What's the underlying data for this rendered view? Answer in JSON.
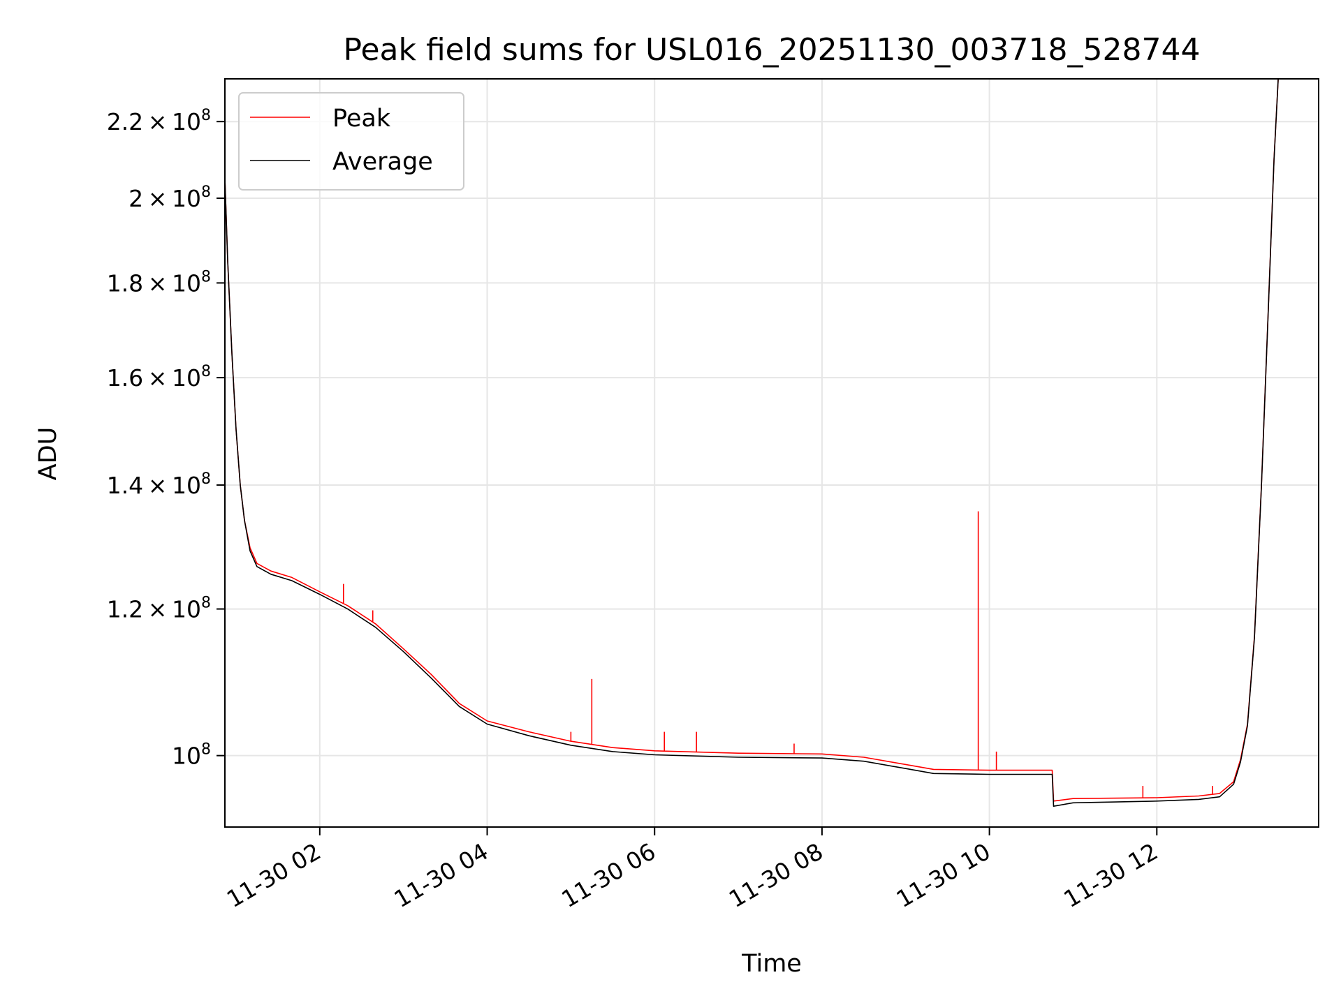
{
  "chart_data": {
    "type": "line",
    "title": "Peak field sums for USL016_20251130_003718_528744",
    "xlabel": "Time",
    "ylabel": "ADU",
    "y_scale": "log",
    "xlim": [
      "2025-11-30 00:52",
      "2025-11-30 13:56"
    ],
    "ylim": [
      91500000,
      232000000
    ],
    "grid": true,
    "legend_position": "top-left",
    "x_ticks": [
      {
        "value": "2025-11-30 02:00",
        "label": "11-30 02"
      },
      {
        "value": "2025-11-30 04:00",
        "label": "11-30 04"
      },
      {
        "value": "2025-11-30 06:00",
        "label": "11-30 06"
      },
      {
        "value": "2025-11-30 08:00",
        "label": "11-30 08"
      },
      {
        "value": "2025-11-30 10:00",
        "label": "11-30 10"
      },
      {
        "value": "2025-11-30 12:00",
        "label": "11-30 12"
      }
    ],
    "y_ticks": [
      {
        "value": 100000000,
        "mantissa": "",
        "exponent": "8"
      },
      {
        "value": 120000000,
        "mantissa": "1.2",
        "exponent": "8"
      },
      {
        "value": 140000000,
        "mantissa": "1.4",
        "exponent": "8"
      },
      {
        "value": 160000000,
        "mantissa": "1.6",
        "exponent": "8"
      },
      {
        "value": 180000000,
        "mantissa": "1.8",
        "exponent": "8"
      },
      {
        "value": 200000000,
        "mantissa": "2",
        "exponent": "8"
      },
      {
        "value": 220000000,
        "mantissa": "2.2",
        "exponent": "8"
      }
    ],
    "series": [
      {
        "name": "Peak",
        "color": "#ff0000",
        "points": [
          [
            "2025-11-30 00:52",
            205000000
          ],
          [
            "2025-11-30 00:54",
            185000000
          ],
          [
            "2025-11-30 00:57",
            165000000
          ],
          [
            "2025-11-30 01:00",
            150000000
          ],
          [
            "2025-11-30 01:03",
            140000000
          ],
          [
            "2025-11-30 01:06",
            134000000
          ],
          [
            "2025-11-30 01:10",
            129500000
          ],
          [
            "2025-11-30 01:15",
            127000000
          ],
          [
            "2025-11-30 01:25",
            125800000
          ],
          [
            "2025-11-30 01:40",
            124800000
          ],
          [
            "2025-11-30 02:00",
            122600000
          ],
          [
            "2025-11-30 02:20",
            120500000
          ],
          [
            "2025-11-30 02:40",
            117800000
          ],
          [
            "2025-11-30 03:00",
            114200000
          ],
          [
            "2025-11-30 03:20",
            110600000
          ],
          [
            "2025-11-30 03:40",
            106700000
          ],
          [
            "2025-11-30 04:00",
            104400000
          ],
          [
            "2025-11-30 04:30",
            103000000
          ],
          [
            "2025-11-30 05:00",
            101800000
          ],
          [
            "2025-11-30 05:30",
            101000000
          ],
          [
            "2025-11-30 06:00",
            100600000
          ],
          [
            "2025-11-30 07:00",
            100300000
          ],
          [
            "2025-11-30 08:00",
            100200000
          ],
          [
            "2025-11-30 08:30",
            99800000
          ],
          [
            "2025-11-30 09:00",
            98900000
          ],
          [
            "2025-11-30 09:20",
            98300000
          ],
          [
            "2025-11-30 10:00",
            98200000
          ],
          [
            "2025-11-30 10:45",
            98200000
          ],
          [
            "2025-11-30 10:46",
            94500000
          ],
          [
            "2025-11-30 11:00",
            94800000
          ],
          [
            "2025-11-30 12:00",
            94900000
          ],
          [
            "2025-11-30 12:30",
            95100000
          ],
          [
            "2025-11-30 12:45",
            95400000
          ],
          [
            "2025-11-30 12:55",
            96800000
          ],
          [
            "2025-11-30 13:00",
            99500000
          ],
          [
            "2025-11-30 13:05",
            104000000
          ],
          [
            "2025-11-30 13:10",
            116000000
          ],
          [
            "2025-11-30 13:15",
            140000000
          ],
          [
            "2025-11-30 13:20",
            175000000
          ],
          [
            "2025-11-30 13:24",
            210000000
          ],
          [
            "2025-11-30 13:27",
            232000000
          ]
        ],
        "spikes": [
          [
            "2025-11-30 02:17",
            123800000
          ],
          [
            "2025-11-30 02:38",
            119800000
          ],
          [
            "2025-11-30 05:00",
            103000000
          ],
          [
            "2025-11-30 05:15",
            110000000
          ],
          [
            "2025-11-30 06:07",
            103000000
          ],
          [
            "2025-11-30 06:30",
            103000000
          ],
          [
            "2025-11-30 07:40",
            101500000
          ],
          [
            "2025-11-30 09:52",
            135500000
          ],
          [
            "2025-11-30 10:05",
            100500000
          ],
          [
            "2025-11-30 11:50",
            96300000
          ],
          [
            "2025-11-30 12:40",
            96300000
          ]
        ]
      },
      {
        "name": "Average",
        "color": "#000000",
        "points": [
          [
            "2025-11-30 00:52",
            205000000
          ],
          [
            "2025-11-30 00:54",
            185000000
          ],
          [
            "2025-11-30 00:57",
            165000000
          ],
          [
            "2025-11-30 01:00",
            150000000
          ],
          [
            "2025-11-30 01:03",
            140000000
          ],
          [
            "2025-11-30 01:06",
            134000000
          ],
          [
            "2025-11-30 01:10",
            129000000
          ],
          [
            "2025-11-30 01:15",
            126500000
          ],
          [
            "2025-11-30 01:25",
            125300000
          ],
          [
            "2025-11-30 01:40",
            124300000
          ],
          [
            "2025-11-30 02:00",
            122200000
          ],
          [
            "2025-11-30 02:20",
            120000000
          ],
          [
            "2025-11-30 02:40",
            117300000
          ],
          [
            "2025-11-30 03:00",
            113800000
          ],
          [
            "2025-11-30 03:20",
            110100000
          ],
          [
            "2025-11-30 03:40",
            106300000
          ],
          [
            "2025-11-30 04:00",
            104000000
          ],
          [
            "2025-11-30 04:30",
            102500000
          ],
          [
            "2025-11-30 05:00",
            101300000
          ],
          [
            "2025-11-30 05:30",
            100500000
          ],
          [
            "2025-11-30 06:00",
            100100000
          ],
          [
            "2025-11-30 07:00",
            99800000
          ],
          [
            "2025-11-30 08:00",
            99700000
          ],
          [
            "2025-11-30 08:30",
            99300000
          ],
          [
            "2025-11-30 09:00",
            98400000
          ],
          [
            "2025-11-30 09:20",
            97800000
          ],
          [
            "2025-11-30 10:00",
            97700000
          ],
          [
            "2025-11-30 10:45",
            97700000
          ],
          [
            "2025-11-30 10:46",
            93900000
          ],
          [
            "2025-11-30 11:00",
            94300000
          ],
          [
            "2025-11-30 12:00",
            94500000
          ],
          [
            "2025-11-30 12:30",
            94700000
          ],
          [
            "2025-11-30 12:45",
            95000000
          ],
          [
            "2025-11-30 12:55",
            96500000
          ],
          [
            "2025-11-30 13:00",
            99200000
          ],
          [
            "2025-11-30 13:05",
            103800000
          ],
          [
            "2025-11-30 13:10",
            115800000
          ],
          [
            "2025-11-30 13:15",
            139800000
          ],
          [
            "2025-11-30 13:20",
            174800000
          ],
          [
            "2025-11-30 13:24",
            209800000
          ],
          [
            "2025-11-30 13:27",
            232000000
          ]
        ]
      }
    ]
  }
}
